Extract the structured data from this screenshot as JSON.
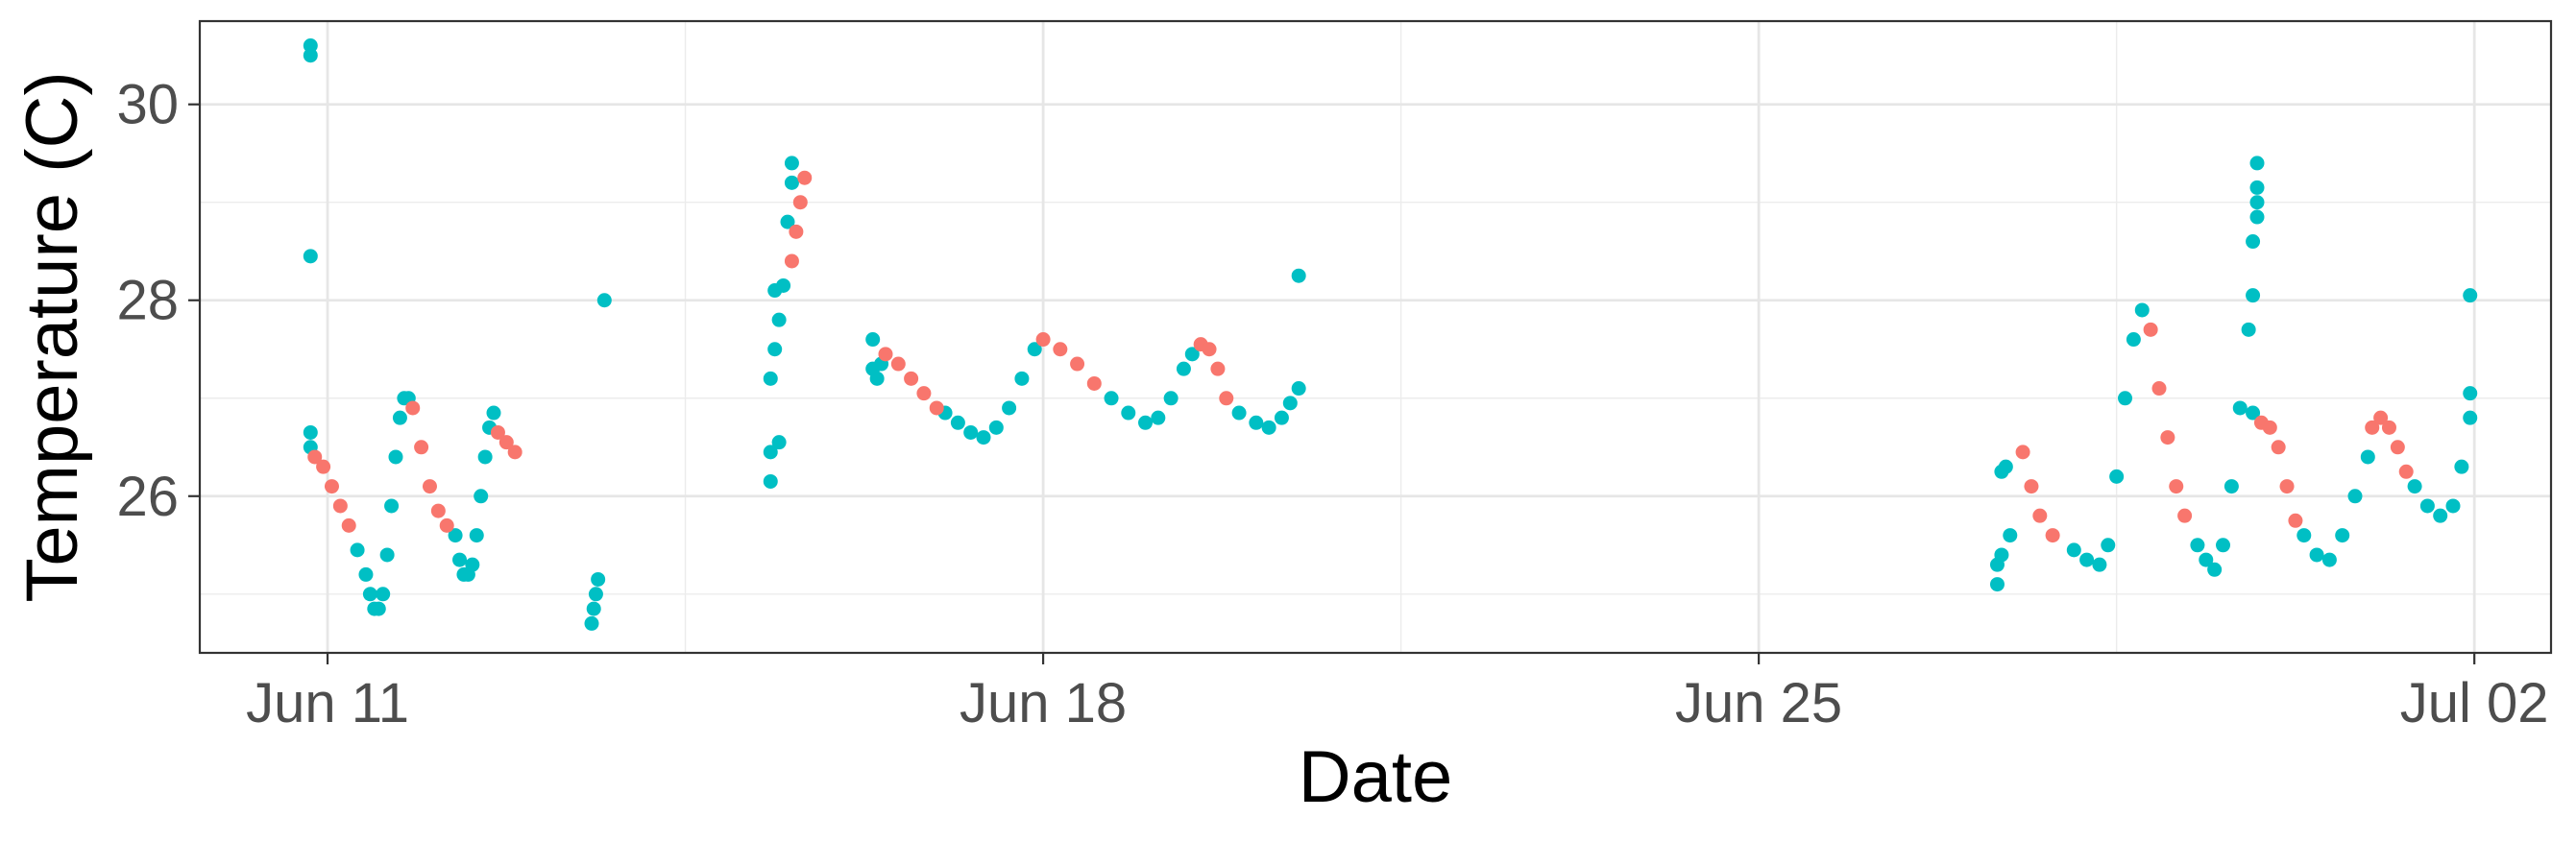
{
  "chart_data": {
    "type": "scatter",
    "xlabel": "Date",
    "ylabel": "Temperature (C)",
    "x_ticks": [
      {
        "date": "2023-06-11",
        "label": "Jun 11"
      },
      {
        "date": "2023-06-18",
        "label": "Jun 18"
      },
      {
        "date": "2023-06-25",
        "label": "Jun 25"
      },
      {
        "date": "2023-07-02",
        "label": "Jul 02"
      }
    ],
    "y_ticks": [
      {
        "value": 26,
        "label": "26"
      },
      {
        "value": 28,
        "label": "28"
      },
      {
        "value": 30,
        "label": "30"
      }
    ],
    "xlim": [
      "2023-06-09T18:00",
      "2023-07-02T18:00"
    ],
    "ylim": [
      24.4,
      30.85
    ],
    "grid": true,
    "legend": "none",
    "colors": {
      "red_group": "#F8766D",
      "teal_group": "#00BFC4"
    },
    "series": [
      {
        "color": "#00BFC4",
        "points": [
          [
            "2023-06-10T20:00",
            30.6
          ],
          [
            "2023-06-10T20:00",
            30.5
          ],
          [
            "2023-06-10T20:00",
            28.45
          ],
          [
            "2023-06-10T20:00",
            26.65
          ],
          [
            "2023-06-10T20:00",
            26.5
          ],
          [
            "2023-06-11T07:00",
            25.45
          ],
          [
            "2023-06-11T09:00",
            25.2
          ],
          [
            "2023-06-11T10:00",
            25.0
          ],
          [
            "2023-06-11T11:00",
            24.85
          ],
          [
            "2023-06-11T12:00",
            24.85
          ],
          [
            "2023-06-11T13:00",
            25.0
          ],
          [
            "2023-06-11T14:00",
            25.4
          ],
          [
            "2023-06-11T15:00",
            25.9
          ],
          [
            "2023-06-11T16:00",
            26.4
          ],
          [
            "2023-06-11T17:00",
            26.8
          ],
          [
            "2023-06-11T18:00",
            27.0
          ],
          [
            "2023-06-11T19:00",
            27.0
          ],
          [
            "2023-06-12T06:00",
            25.6
          ],
          [
            "2023-06-12T07:00",
            25.35
          ],
          [
            "2023-06-12T08:00",
            25.2
          ],
          [
            "2023-06-12T09:00",
            25.2
          ],
          [
            "2023-06-12T10:00",
            25.3
          ],
          [
            "2023-06-12T11:00",
            25.6
          ],
          [
            "2023-06-12T12:00",
            26.0
          ],
          [
            "2023-06-12T13:00",
            26.4
          ],
          [
            "2023-06-12T14:00",
            26.7
          ],
          [
            "2023-06-12T15:00",
            26.85
          ],
          [
            "2023-06-13T14:00",
            24.7
          ],
          [
            "2023-06-13T14:30",
            24.85
          ],
          [
            "2023-06-13T15:00",
            25.0
          ],
          [
            "2023-06-13T15:30",
            25.15
          ],
          [
            "2023-06-13T17:00",
            28.0
          ],
          [
            "2023-06-15T08:00",
            26.15
          ],
          [
            "2023-06-15T08:00",
            26.45
          ],
          [
            "2023-06-15T08:00",
            27.2
          ],
          [
            "2023-06-15T09:00",
            27.5
          ],
          [
            "2023-06-15T09:00",
            28.1
          ],
          [
            "2023-06-15T10:00",
            26.55
          ],
          [
            "2023-06-15T10:00",
            27.8
          ],
          [
            "2023-06-15T11:00",
            28.15
          ],
          [
            "2023-06-15T12:00",
            28.8
          ],
          [
            "2023-06-15T13:00",
            29.2
          ],
          [
            "2023-06-15T13:00",
            29.4
          ],
          [
            "2023-06-16T08:00",
            27.6
          ],
          [
            "2023-06-16T08:00",
            27.3
          ],
          [
            "2023-06-16T09:00",
            27.2
          ],
          [
            "2023-06-16T10:00",
            27.35
          ],
          [
            "2023-06-17T01:00",
            26.85
          ],
          [
            "2023-06-17T04:00",
            26.75
          ],
          [
            "2023-06-17T07:00",
            26.65
          ],
          [
            "2023-06-17T10:00",
            26.6
          ],
          [
            "2023-06-17T13:00",
            26.7
          ],
          [
            "2023-06-17T16:00",
            26.9
          ],
          [
            "2023-06-17T19:00",
            27.2
          ],
          [
            "2023-06-17T22:00",
            27.5
          ],
          [
            "2023-06-18T16:00",
            27.0
          ],
          [
            "2023-06-18T20:00",
            26.85
          ],
          [
            "2023-06-19T00:00",
            26.75
          ],
          [
            "2023-06-19T03:00",
            26.8
          ],
          [
            "2023-06-19T06:00",
            27.0
          ],
          [
            "2023-06-19T09:00",
            27.3
          ],
          [
            "2023-06-19T11:00",
            27.45
          ],
          [
            "2023-06-19T22:00",
            26.85
          ],
          [
            "2023-06-20T02:00",
            26.75
          ],
          [
            "2023-06-20T05:00",
            26.7
          ],
          [
            "2023-06-20T08:00",
            26.8
          ],
          [
            "2023-06-20T10:00",
            26.95
          ],
          [
            "2023-06-20T12:00",
            27.1
          ],
          [
            "2023-06-20T12:00",
            28.25
          ],
          [
            "2023-06-27T08:00",
            25.1
          ],
          [
            "2023-06-27T08:00",
            25.3
          ],
          [
            "2023-06-27T09:00",
            25.4
          ],
          [
            "2023-06-27T09:00",
            26.25
          ],
          [
            "2023-06-27T10:00",
            26.3
          ],
          [
            "2023-06-27T11:00",
            25.6
          ],
          [
            "2023-06-28T02:00",
            25.45
          ],
          [
            "2023-06-28T05:00",
            25.35
          ],
          [
            "2023-06-28T08:00",
            25.3
          ],
          [
            "2023-06-28T10:00",
            25.5
          ],
          [
            "2023-06-28T12:00",
            26.2
          ],
          [
            "2023-06-28T14:00",
            27.0
          ],
          [
            "2023-06-28T16:00",
            27.6
          ],
          [
            "2023-06-28T18:00",
            27.9
          ],
          [
            "2023-06-29T07:00",
            25.5
          ],
          [
            "2023-06-29T09:00",
            25.35
          ],
          [
            "2023-06-29T11:00",
            25.25
          ],
          [
            "2023-06-29T13:00",
            25.5
          ],
          [
            "2023-06-29T15:00",
            26.1
          ],
          [
            "2023-06-29T17:00",
            26.9
          ],
          [
            "2023-06-29T19:00",
            27.7
          ],
          [
            "2023-06-29T20:00",
            28.05
          ],
          [
            "2023-06-29T20:00",
            28.6
          ],
          [
            "2023-06-29T21:00",
            28.85
          ],
          [
            "2023-06-29T21:00",
            29.0
          ],
          [
            "2023-06-29T21:00",
            29.15
          ],
          [
            "2023-06-29T21:00",
            29.4
          ],
          [
            "2023-06-29T20:00",
            26.85
          ],
          [
            "2023-06-30T08:00",
            25.6
          ],
          [
            "2023-06-30T11:00",
            25.4
          ],
          [
            "2023-06-30T14:00",
            25.35
          ],
          [
            "2023-06-30T17:00",
            25.6
          ],
          [
            "2023-06-30T20:00",
            26.0
          ],
          [
            "2023-06-30T23:00",
            26.4
          ],
          [
            "2023-07-01T10:00",
            26.1
          ],
          [
            "2023-07-01T13:00",
            25.9
          ],
          [
            "2023-07-01T16:00",
            25.8
          ],
          [
            "2023-07-01T19:00",
            25.9
          ],
          [
            "2023-07-01T21:00",
            26.3
          ],
          [
            "2023-07-01T23:00",
            26.8
          ],
          [
            "2023-07-01T23:00",
            27.05
          ],
          [
            "2023-07-01T23:00",
            28.05
          ]
        ]
      },
      {
        "color": "#F8766D",
        "points": [
          [
            "2023-06-10T21:00",
            26.4
          ],
          [
            "2023-06-10T23:00",
            26.3
          ],
          [
            "2023-06-11T01:00",
            26.1
          ],
          [
            "2023-06-11T03:00",
            25.9
          ],
          [
            "2023-06-11T05:00",
            25.7
          ],
          [
            "2023-06-11T20:00",
            26.9
          ],
          [
            "2023-06-11T22:00",
            26.5
          ],
          [
            "2023-06-12T00:00",
            26.1
          ],
          [
            "2023-06-12T02:00",
            25.85
          ],
          [
            "2023-06-12T04:00",
            25.7
          ],
          [
            "2023-06-12T16:00",
            26.65
          ],
          [
            "2023-06-12T18:00",
            26.55
          ],
          [
            "2023-06-12T20:00",
            26.45
          ],
          [
            "2023-06-15T13:00",
            28.4
          ],
          [
            "2023-06-15T14:00",
            28.7
          ],
          [
            "2023-06-15T15:00",
            29.0
          ],
          [
            "2023-06-15T16:00",
            29.25
          ],
          [
            "2023-06-16T11:00",
            27.45
          ],
          [
            "2023-06-16T14:00",
            27.35
          ],
          [
            "2023-06-16T17:00",
            27.2
          ],
          [
            "2023-06-16T20:00",
            27.05
          ],
          [
            "2023-06-16T23:00",
            26.9
          ],
          [
            "2023-06-18T00:00",
            27.6
          ],
          [
            "2023-06-18T04:00",
            27.5
          ],
          [
            "2023-06-18T08:00",
            27.35
          ],
          [
            "2023-06-18T12:00",
            27.15
          ],
          [
            "2023-06-19T13:00",
            27.55
          ],
          [
            "2023-06-19T15:00",
            27.5
          ],
          [
            "2023-06-19T17:00",
            27.3
          ],
          [
            "2023-06-19T19:00",
            27.0
          ],
          [
            "2023-06-27T14:00",
            26.45
          ],
          [
            "2023-06-27T16:00",
            26.1
          ],
          [
            "2023-06-27T18:00",
            25.8
          ],
          [
            "2023-06-27T21:00",
            25.6
          ],
          [
            "2023-06-28T20:00",
            27.7
          ],
          [
            "2023-06-28T22:00",
            27.1
          ],
          [
            "2023-06-29T00:00",
            26.6
          ],
          [
            "2023-06-29T02:00",
            26.1
          ],
          [
            "2023-06-29T04:00",
            25.8
          ],
          [
            "2023-06-29T22:00",
            26.75
          ],
          [
            "2023-06-30T00:00",
            26.7
          ],
          [
            "2023-06-30T02:00",
            26.5
          ],
          [
            "2023-06-30T04:00",
            26.1
          ],
          [
            "2023-06-30T06:00",
            25.75
          ],
          [
            "2023-07-01T00:00",
            26.7
          ],
          [
            "2023-07-01T02:00",
            26.8
          ],
          [
            "2023-07-01T04:00",
            26.7
          ],
          [
            "2023-07-01T06:00",
            26.5
          ],
          [
            "2023-07-01T08:00",
            26.25
          ]
        ]
      }
    ]
  }
}
